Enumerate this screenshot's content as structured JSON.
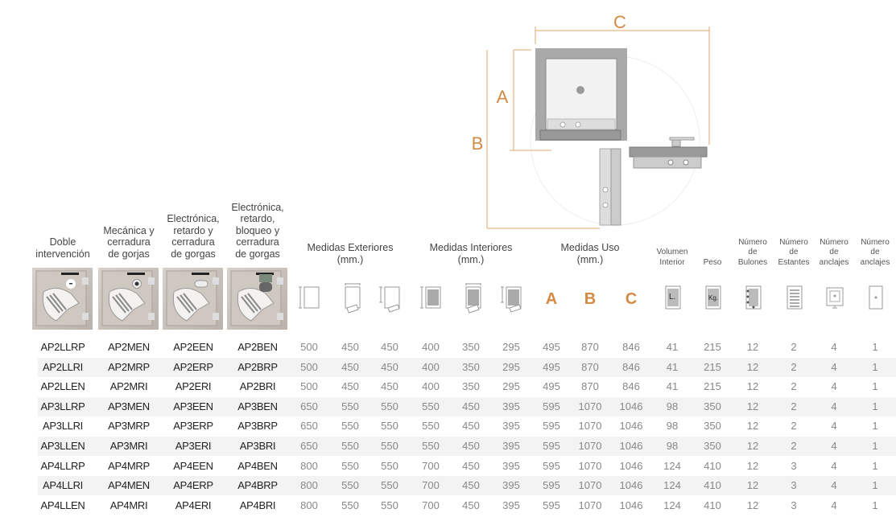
{
  "diagram": {
    "labels": {
      "a": "A",
      "b": "B",
      "c": "C"
    },
    "accent": "#d38a45"
  },
  "headers": {
    "model_columns": [
      {
        "label_lines": [
          "Doble",
          "intervención"
        ],
        "image": "safe-keylock"
      },
      {
        "label_lines": [
          "Mecánica y",
          "cerradura",
          "de gorjas"
        ],
        "image": "safe-dial-lock"
      },
      {
        "label_lines": [
          "Electrónica,",
          "retardo y",
          "cerradura",
          "de gorgas"
        ],
        "image": "safe-electronic-lock"
      },
      {
        "label_lines": [
          "Electrónica,",
          "retardo,",
          "bloqueo y",
          "cerradura",
          "de gorgas"
        ],
        "image": "safe-electronic-display-lock"
      }
    ],
    "groups": [
      {
        "label_lines": [
          "Medidas Exteriores",
          "(mm.)"
        ]
      },
      {
        "label_lines": [
          "Medidas Interiores",
          "(mm.)"
        ]
      },
      {
        "label_lines": [
          "Medidas Uso",
          "(mm.)"
        ]
      }
    ],
    "small": [
      {
        "label_lines": [
          "Volumen",
          "Interior"
        ]
      },
      {
        "label_lines": [
          "Peso"
        ]
      },
      {
        "label_lines": [
          "Número",
          "de",
          "Bulones"
        ]
      },
      {
        "label_lines": [
          "Número",
          "de",
          "Estantes"
        ]
      },
      {
        "label_lines": [
          "Número",
          "de",
          "anclajes"
        ]
      },
      {
        "label_lines": [
          "Número",
          "de",
          "anclajes"
        ]
      }
    ],
    "icons": [
      "exterior-height-icon",
      "exterior-width-icon",
      "exterior-depth-icon",
      "interior-height-icon",
      "interior-width-icon",
      "interior-depth-icon"
    ],
    "use_letters": [
      "A",
      "B",
      "C"
    ],
    "unit_icons": {
      "volume": "L.",
      "weight": "Kg."
    },
    "other_icons": [
      "bolts-icon",
      "shelves-icon",
      "floor-anchor-icon",
      "wall-anchor-icon"
    ]
  },
  "rows": [
    {
      "models": [
        "AP2LLRP",
        "AP2MEN",
        "AP2EEN",
        "AP2BEN"
      ],
      "values": [
        "500",
        "450",
        "450",
        "400",
        "350",
        "295",
        "495",
        "870",
        "846",
        "41",
        "215",
        "12",
        "2",
        "4",
        "1"
      ]
    },
    {
      "models": [
        "AP2LLRI",
        "AP2MRP",
        "AP2ERP",
        "AP2BRP"
      ],
      "values": [
        "500",
        "450",
        "450",
        "400",
        "350",
        "295",
        "495",
        "870",
        "846",
        "41",
        "215",
        "12",
        "2",
        "4",
        "1"
      ]
    },
    {
      "models": [
        "AP2LLEN",
        "AP2MRI",
        "AP2ERI",
        "AP2BRI"
      ],
      "values": [
        "500",
        "450",
        "450",
        "400",
        "350",
        "295",
        "495",
        "870",
        "846",
        "41",
        "215",
        "12",
        "2",
        "4",
        "1"
      ]
    },
    {
      "models": [
        "AP3LLRP",
        "AP3MEN",
        "AP3EEN",
        "AP3BEN"
      ],
      "values": [
        "650",
        "550",
        "550",
        "550",
        "450",
        "395",
        "595",
        "1070",
        "1046",
        "98",
        "350",
        "12",
        "2",
        "4",
        "1"
      ]
    },
    {
      "models": [
        "AP3LLRI",
        "AP3MRP",
        "AP3ERP",
        "AP3BRP"
      ],
      "values": [
        "650",
        "550",
        "550",
        "550",
        "450",
        "395",
        "595",
        "1070",
        "1046",
        "98",
        "350",
        "12",
        "2",
        "4",
        "1"
      ]
    },
    {
      "models": [
        "AP3LLEN",
        "AP3MRI",
        "AP3ERI",
        "AP3BRI"
      ],
      "values": [
        "650",
        "550",
        "550",
        "550",
        "450",
        "395",
        "595",
        "1070",
        "1046",
        "98",
        "350",
        "12",
        "2",
        "4",
        "1"
      ]
    },
    {
      "models": [
        "AP4LLRP",
        "AP4MRP",
        "AP4EEN",
        "AP4BEN"
      ],
      "values": [
        "800",
        "550",
        "550",
        "700",
        "450",
        "395",
        "595",
        "1070",
        "1046",
        "124",
        "410",
        "12",
        "3",
        "4",
        "1"
      ]
    },
    {
      "models": [
        "AP4LLRI",
        "AP4MEN",
        "AP4ERP",
        "AP4BRP"
      ],
      "values": [
        "800",
        "550",
        "550",
        "700",
        "450",
        "395",
        "595",
        "1070",
        "1046",
        "124",
        "410",
        "12",
        "3",
        "4",
        "1"
      ]
    },
    {
      "models": [
        "AP4LLEN",
        "AP4MRI",
        "AP4ERI",
        "AP4BRI"
      ],
      "values": [
        "800",
        "550",
        "550",
        "700",
        "450",
        "395",
        "595",
        "1070",
        "1046",
        "124",
        "410",
        "12",
        "3",
        "4",
        "1"
      ]
    }
  ]
}
